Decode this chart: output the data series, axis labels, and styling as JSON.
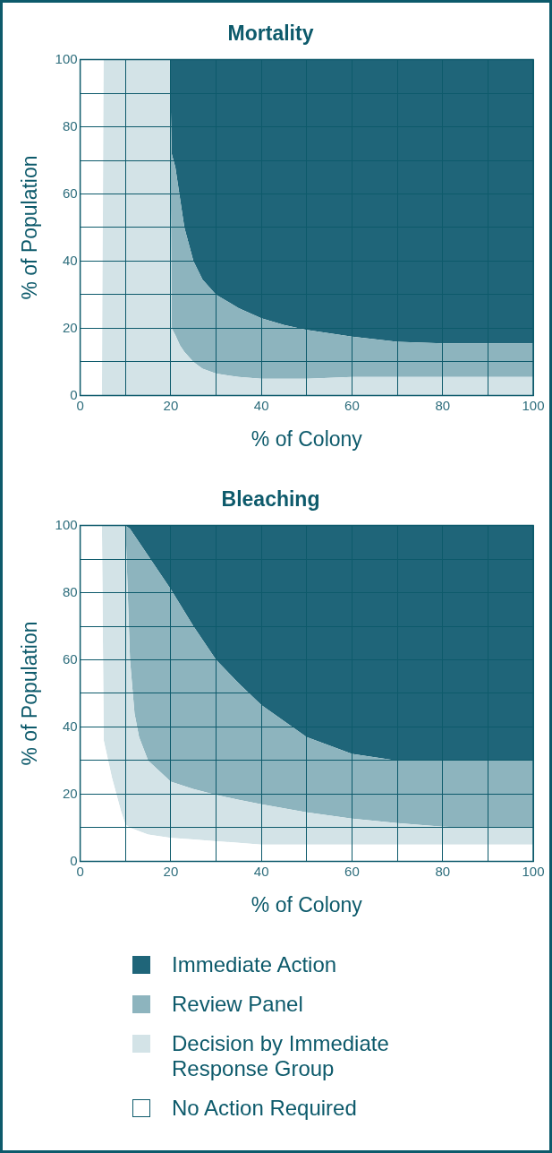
{
  "chart_data": [
    {
      "type": "area",
      "stacked": true,
      "title": "Mortality",
      "xlabel": "% of Colony",
      "ylabel": "% of Population",
      "grid": true,
      "x": [
        0,
        4.8,
        5.2,
        19.8,
        20.2,
        21,
        22,
        23,
        25,
        27,
        30,
        35,
        40,
        45,
        50,
        60,
        70,
        80,
        90,
        100
      ],
      "xlim": [
        0,
        100
      ],
      "ylim": [
        0,
        100
      ],
      "xticks": [
        0,
        {
          "value": 10,
          "label": null
        },
        20,
        {
          "value": 30,
          "label": null
        },
        40,
        {
          "value": 50,
          "label": null
        },
        60,
        {
          "value": 70,
          "label": null
        },
        80,
        {
          "value": 90,
          "label": null
        },
        100
      ],
      "yticks": [
        0,
        {
          "value": 10,
          "label": null
        },
        20,
        {
          "value": 30,
          "label": null
        },
        40,
        {
          "value": 50,
          "label": null
        },
        60,
        {
          "value": 70,
          "label": null
        },
        80,
        {
          "value": 90,
          "label": null
        },
        100
      ],
      "series": [
        {
          "color": "#d3e3e7",
          "values": [
            0,
            0,
            100,
            100,
            20,
            18,
            15,
            13,
            10,
            8,
            6.5,
            5.5,
            5,
            5,
            5,
            5.5,
            5.5,
            5.5,
            5.5,
            5.5
          ]
        },
        {
          "color": "#8db4be",
          "values": [
            null,
            null,
            null,
            0,
            52,
            50,
            44,
            37,
            30,
            26.5,
            23.5,
            20.5,
            18,
            16,
            14.5,
            12,
            10.5,
            10,
            10,
            10
          ]
        },
        {
          "color": "#1f6579",
          "values": [
            null,
            null,
            null,
            0,
            28,
            32,
            41,
            50,
            60,
            65.5,
            70,
            74,
            77,
            79,
            80.5,
            82.5,
            84,
            84.5,
            84.5,
            84.5
          ]
        }
      ]
    },
    {
      "type": "area",
      "stacked": true,
      "title": "Bleaching",
      "xlabel": "% of Colony",
      "ylabel": "% of Population",
      "grid": true,
      "legend": "bottom",
      "x": [
        0,
        4.8,
        5.2,
        7,
        9,
        10,
        11,
        12,
        13,
        15,
        20,
        25,
        30,
        35,
        40,
        50,
        60,
        70,
        80,
        90,
        100
      ],
      "xlim": [
        0,
        100
      ],
      "ylim": [
        0,
        100
      ],
      "xticks": [
        0,
        {
          "value": 10,
          "label": null
        },
        20,
        {
          "value": 30,
          "label": null
        },
        40,
        {
          "value": 50,
          "label": null
        },
        60,
        {
          "value": 70,
          "label": null
        },
        80,
        {
          "value": 90,
          "label": null
        },
        100
      ],
      "yticks": [
        0,
        {
          "value": 10,
          "label": null
        },
        20,
        {
          "value": 30,
          "label": null
        },
        40,
        {
          "value": 50,
          "label": null
        },
        60,
        {
          "value": 70,
          "label": null
        },
        80,
        {
          "value": 90,
          "label": null
        },
        100
      ],
      "series": [
        {
          "name": "No Action Required",
          "color": "#ffffff",
          "values": [
            100,
            100,
            36,
            25,
            15,
            11,
            10,
            9.5,
            9,
            8,
            7,
            6.5,
            6,
            5.5,
            5,
            5,
            5,
            5,
            5,
            5,
            5
          ]
        },
        {
          "name": "Decision by Immediate Response Group",
          "color": "#d3e3e7",
          "values": [
            0,
            0,
            64,
            75,
            85,
            89,
            50,
            34.5,
            28,
            22,
            16.7,
            15,
            13.8,
            12.8,
            12,
            9.6,
            7.7,
            6.4,
            5.3,
            5,
            5
          ]
        },
        {
          "name": "Review Panel",
          "color": "#8db4be",
          "values": [
            0,
            0,
            0,
            0,
            0,
            0,
            39,
            53,
            58,
            61,
            57.3,
            48.5,
            40.2,
            34.7,
            29.5,
            22.4,
            19.3,
            18.6,
            19.7,
            20,
            20
          ]
        },
        {
          "name": "Immediate Action",
          "color": "#1f6579",
          "values": [
            0,
            0,
            0,
            0,
            0,
            0,
            1,
            3,
            5,
            9,
            19,
            30,
            40,
            47,
            53.5,
            63,
            68,
            70,
            70,
            70,
            70
          ]
        }
      ]
    }
  ]
}
